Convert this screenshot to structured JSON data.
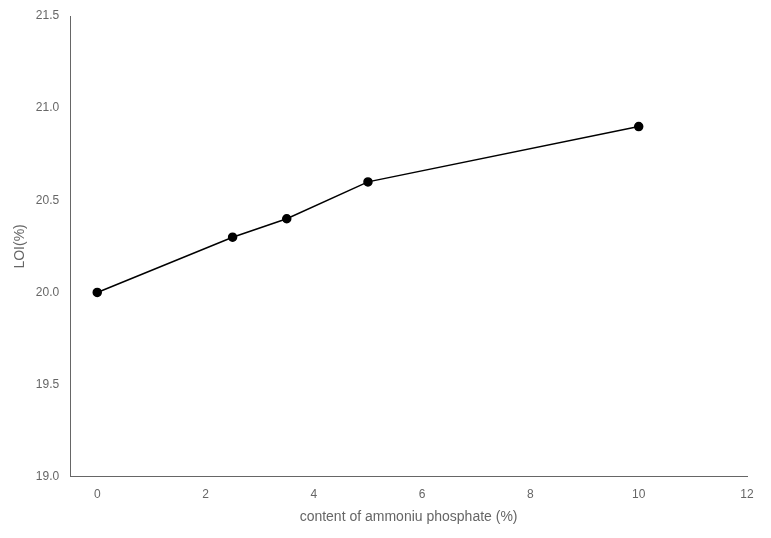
{
  "chart_data": {
    "type": "line",
    "x": [
      0,
      2.5,
      3.5,
      5,
      10
    ],
    "values": [
      20.0,
      20.3,
      20.4,
      20.6,
      20.9
    ],
    "xlabel": "content of ammoniu phosphate (%)",
    "ylabel": "LOI(%)",
    "xlim": [
      -0.5,
      12
    ],
    "ylim": [
      19.0,
      21.5
    ],
    "xticks": [
      0,
      2,
      4,
      6,
      8,
      10,
      12
    ],
    "yticks": [
      {
        "value": 19.0,
        "label": "19.0"
      },
      {
        "value": 19.5,
        "label": "19.5"
      },
      {
        "value": 20.0,
        "label": "20.0"
      },
      {
        "value": 20.5,
        "label": "20.5"
      },
      {
        "value": 21.0,
        "label": "21.0"
      },
      {
        "value": 21.5,
        "label": "21.5"
      }
    ],
    "color": "#000000",
    "marker": "o",
    "grid": false,
    "legend": false
  }
}
